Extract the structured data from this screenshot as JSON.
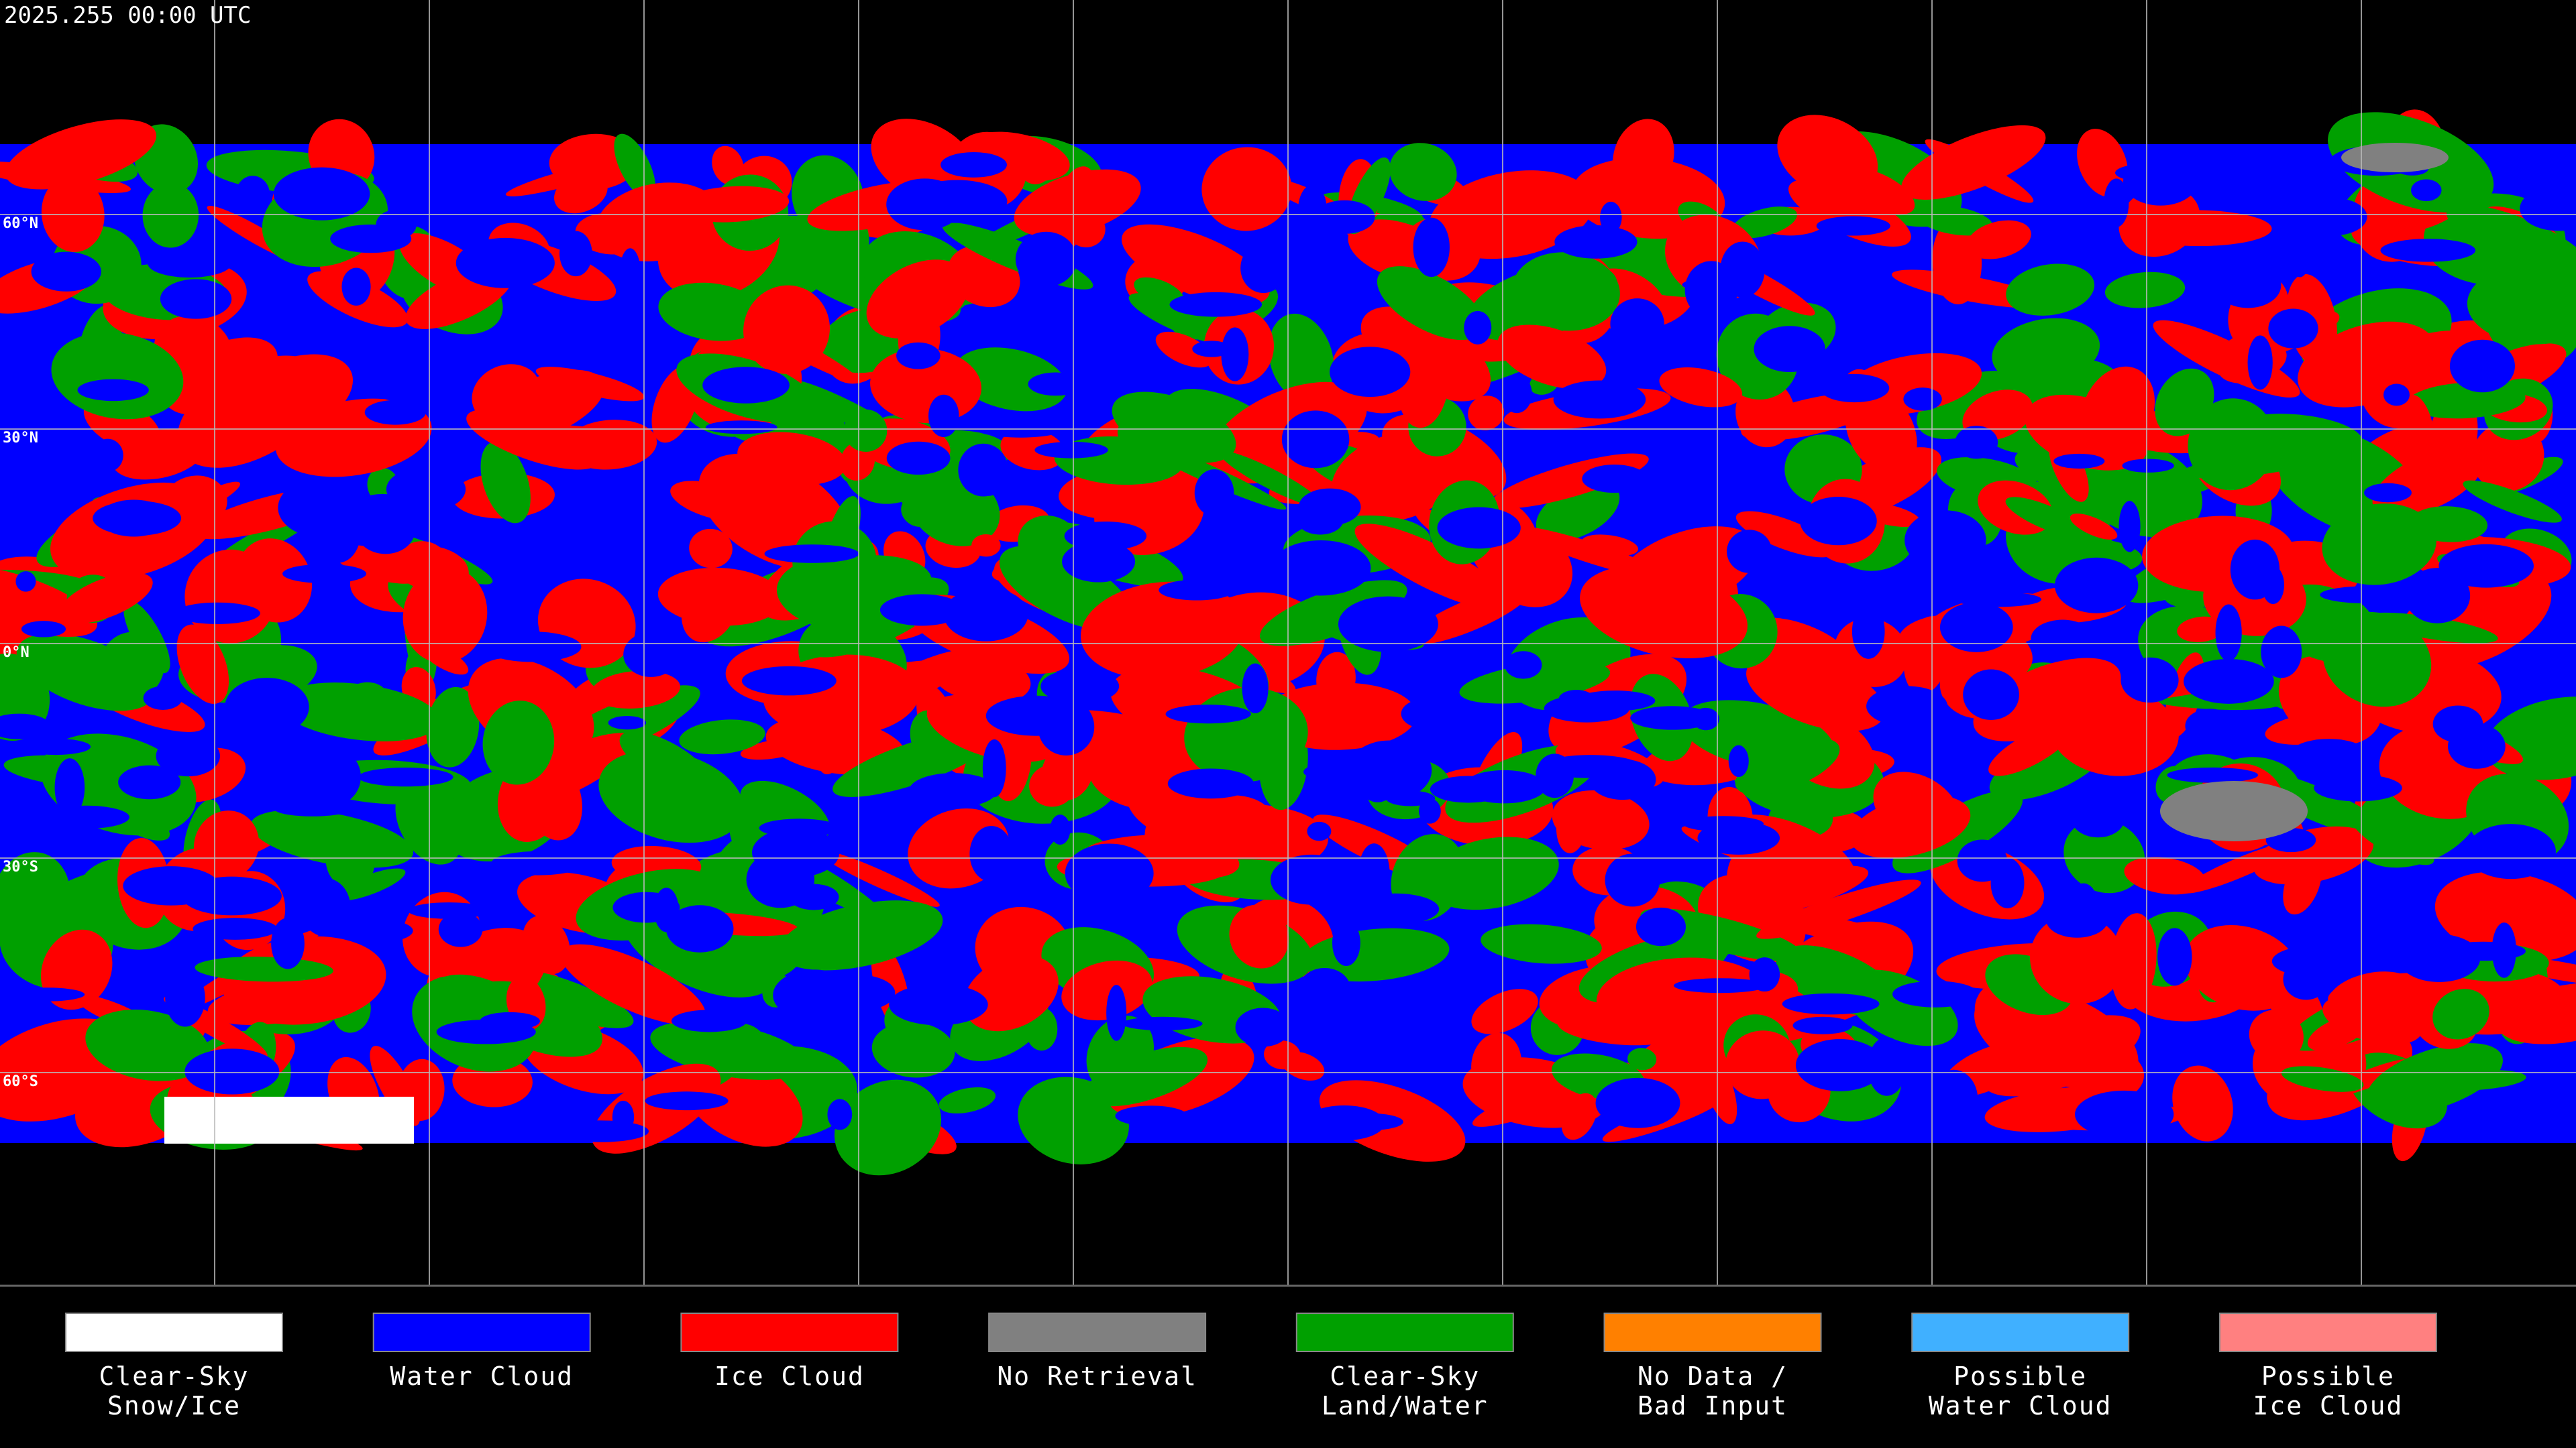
{
  "header": {
    "timestamp": "2025.255 00:00 UTC"
  },
  "map": {
    "latitude_labels": [
      "60°N",
      "30°N",
      "0°N",
      "30°S",
      "60°S"
    ]
  },
  "legend": {
    "items": [
      {
        "lines": [
          "Clear-Sky",
          "Snow/Ice"
        ],
        "color": "#ffffff"
      },
      {
        "lines": [
          "Water Cloud"
        ],
        "color": "#0000ff"
      },
      {
        "lines": [
          "Ice Cloud"
        ],
        "color": "#ff0000"
      },
      {
        "lines": [
          "No Retrieval"
        ],
        "color": "#808080"
      },
      {
        "lines": [
          "Clear-Sky",
          "Land/Water"
        ],
        "color": "#00a000"
      },
      {
        "lines": [
          "No Data /",
          "Bad Input"
        ],
        "color": "#ff8000"
      },
      {
        "lines": [
          "Possible",
          "Water Cloud"
        ],
        "color": "#40b0ff"
      },
      {
        "lines": [
          "Possible",
          "Ice Cloud"
        ],
        "color": "#ff8080"
      }
    ]
  }
}
